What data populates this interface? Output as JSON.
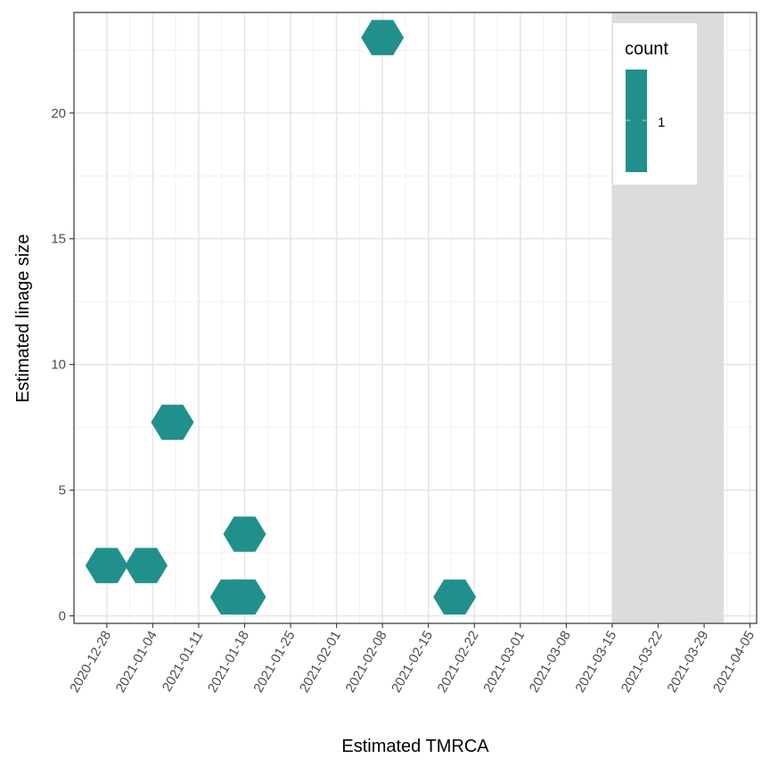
{
  "chart_data": {
    "type": "hexbin",
    "xlabel": "Estimated TMRCA",
    "ylabel": "Estimated linage size",
    "x_ticks": [
      "2020-12-28",
      "2021-01-04",
      "2021-01-11",
      "2021-01-18",
      "2021-01-25",
      "2021-02-01",
      "2021-02-08",
      "2021-02-15",
      "2021-02-22",
      "2021-03-01",
      "2021-03-08",
      "2021-03-15",
      "2021-03-22",
      "2021-03-29",
      "2021-04-05"
    ],
    "y_ticks": [
      0,
      5,
      10,
      15,
      20
    ],
    "xlim": [
      "2020-12-23",
      "2021-04-06"
    ],
    "ylim": [
      -0.3,
      24.0
    ],
    "grid": true,
    "shaded_region": {
      "start": "2021-03-15",
      "end": "2021-04-01",
      "color": "#dcdcdc"
    },
    "points": [
      {
        "x": "2020-12-28",
        "y": 2.0,
        "count": 1
      },
      {
        "x": "2021-01-03",
        "y": 2.0,
        "count": 1
      },
      {
        "x": "2021-01-07",
        "y": 7.7,
        "count": 1
      },
      {
        "x": "2021-01-16",
        "y": 0.75,
        "count": 1
      },
      {
        "x": "2021-01-18",
        "y": 0.75,
        "count": 1
      },
      {
        "x": "2021-01-18",
        "y": 3.25,
        "count": 1
      },
      {
        "x": "2021-02-08",
        "y": 23.0,
        "count": 1
      },
      {
        "x": "2021-02-19",
        "y": 0.75,
        "count": 1
      }
    ],
    "fill_color": "#21908c",
    "legend": {
      "title": "count",
      "labels": [
        "1"
      ],
      "position": "top-right"
    }
  }
}
